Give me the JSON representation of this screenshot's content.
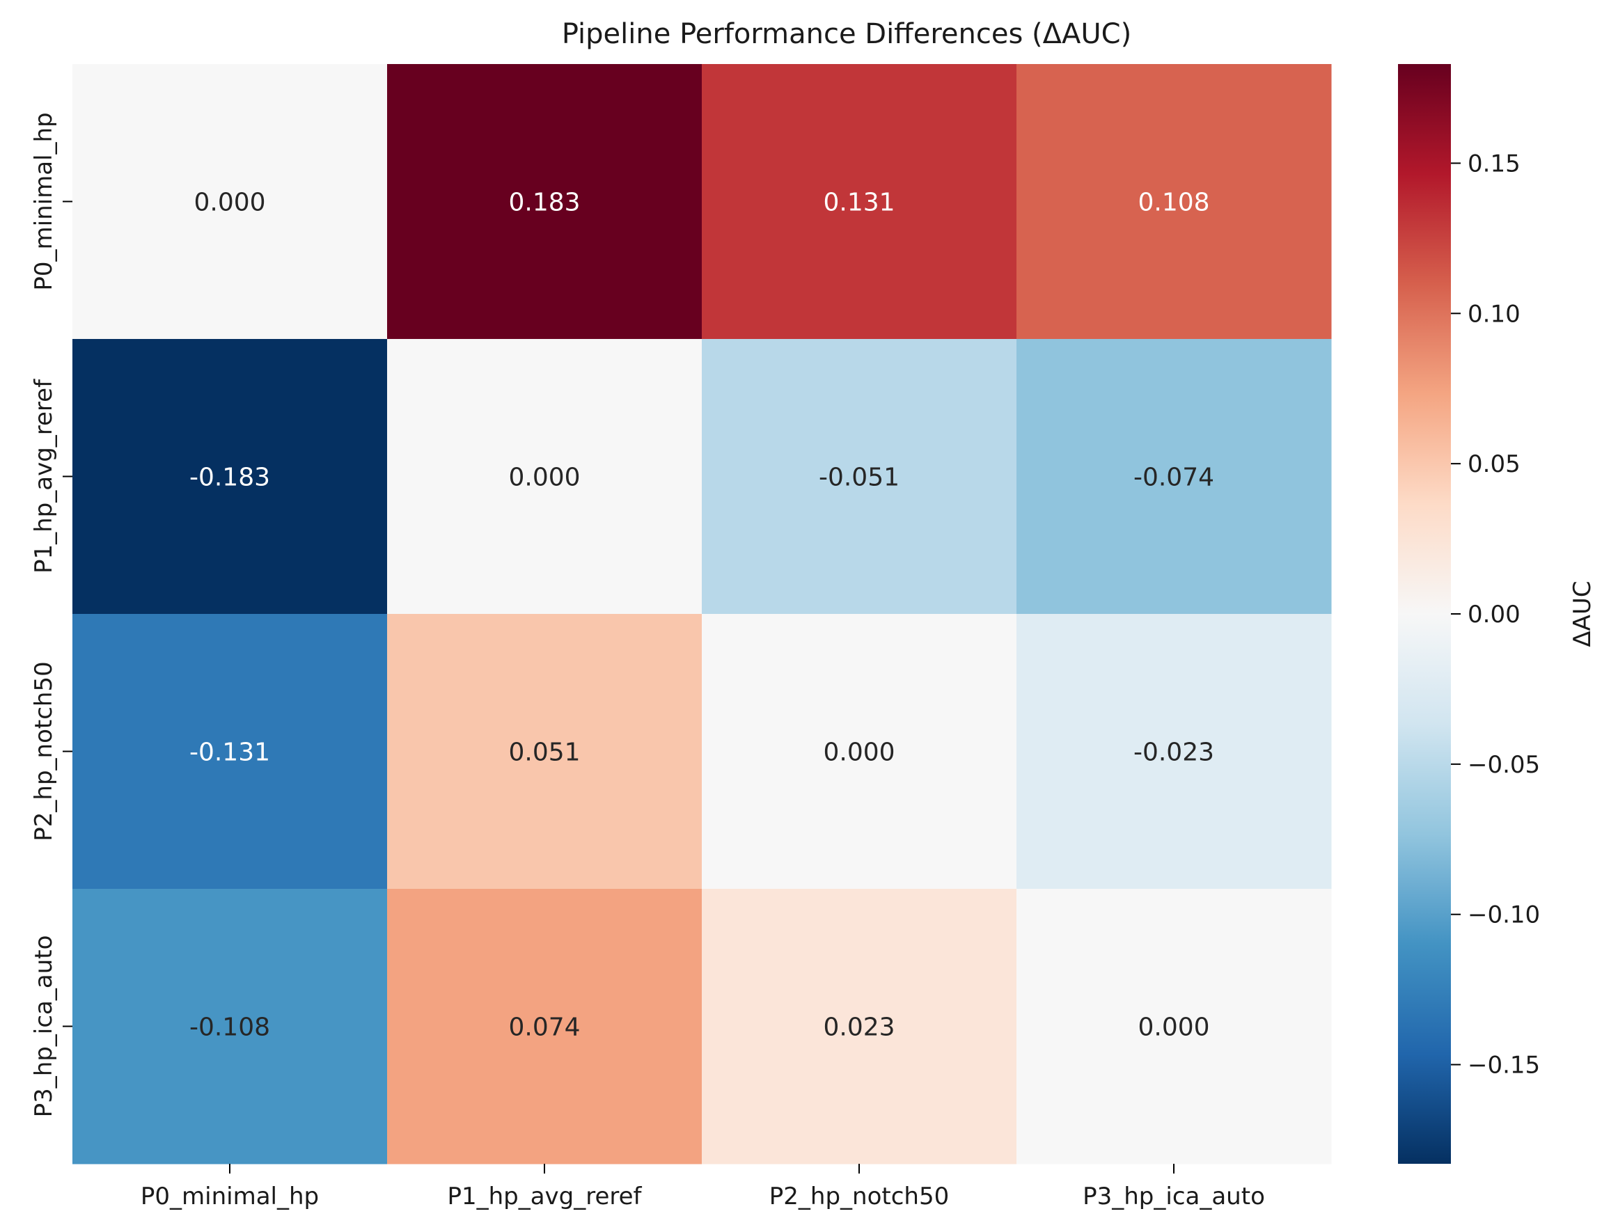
{
  "chart_data": {
    "type": "heatmap",
    "title": "Pipeline Performance Differences (ΔAUC)",
    "x_categories": [
      "P0_minimal_hp",
      "P1_hp_avg_reref",
      "P2_hp_notch50",
      "P3_hp_ica_auto"
    ],
    "y_categories": [
      "P0_minimal_hp",
      "P1_hp_avg_reref",
      "P2_hp_notch50",
      "P3_hp_ica_auto"
    ],
    "values": [
      [
        0.0,
        0.183,
        0.131,
        0.108
      ],
      [
        -0.183,
        0.0,
        -0.051,
        -0.074
      ],
      [
        -0.131,
        0.051,
        0.0,
        -0.023
      ],
      [
        -0.108,
        0.074,
        0.023,
        0.0
      ]
    ],
    "value_labels": [
      [
        "0.000",
        "0.183",
        "0.131",
        "0.108"
      ],
      [
        "-0.183",
        "0.000",
        "-0.051",
        "-0.074"
      ],
      [
        "-0.131",
        "0.051",
        "0.000",
        "-0.023"
      ],
      [
        "-0.108",
        "0.074",
        "0.023",
        "0.000"
      ]
    ],
    "colormap": "RdBu_r",
    "vmin": -0.183,
    "vmax": 0.183,
    "colorbar": {
      "label": "ΔAUC",
      "ticks": [
        0.15,
        0.1,
        0.05,
        0.0,
        -0.05,
        -0.1,
        -0.15
      ],
      "tick_labels": [
        "0.15",
        "0.10",
        "0.05",
        "0.00",
        "−0.05",
        "−0.10",
        "−0.15"
      ]
    },
    "grid": false,
    "legend": "colorbar-right"
  }
}
